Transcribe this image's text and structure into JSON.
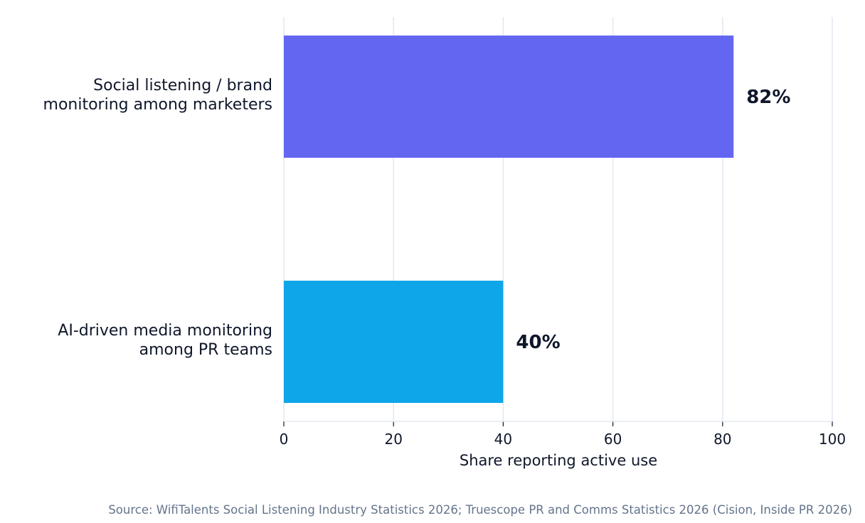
{
  "chart_data": {
    "type": "bar",
    "orientation": "horizontal",
    "categories": [
      [
        "Social listening / brand",
        "monitoring among marketers"
      ],
      [
        "AI-driven media monitoring",
        "among PR teams"
      ]
    ],
    "values": [
      82,
      40
    ],
    "value_labels": [
      "82%",
      "40%"
    ],
    "colors": [
      "#6366f1",
      "#0ea5e9"
    ],
    "xlabel": "Share reporting active use",
    "xlim": [
      0,
      100
    ],
    "xticks": [
      0,
      20,
      40,
      60,
      80,
      100
    ],
    "grid": true
  },
  "source": "Source: WifiTalents Social Listening Industry Statistics 2026; Truescope PR and Comms Statistics 2026 (Cision, Inside PR 2026)"
}
